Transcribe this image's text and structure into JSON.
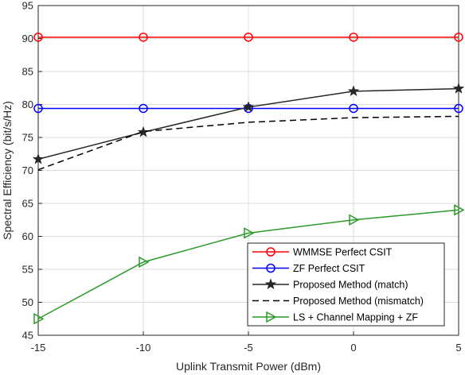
{
  "chart_data": {
    "type": "line",
    "title": "",
    "xlabel": "Uplink Transmit Power (dBm)",
    "ylabel": "Spectral Efficiency (bit/s/Hz)",
    "x": [
      -15,
      -10,
      -5,
      0,
      5
    ],
    "xlim": [
      -15,
      5
    ],
    "ylim": [
      45,
      95
    ],
    "xticks": [
      "-15",
      "-10",
      "-5",
      "0",
      "5"
    ],
    "yticks": [
      "45",
      "50",
      "55",
      "60",
      "65",
      "70",
      "75",
      "80",
      "85",
      "90",
      "95"
    ],
    "grid": true,
    "legend_position": "bottom-right",
    "series": [
      {
        "name": "WMMSE Perfect CSIT",
        "values": [
          90.2,
          90.2,
          90.2,
          90.2,
          90.2
        ],
        "color": "#ff0000",
        "marker": "circle",
        "dash": "solid"
      },
      {
        "name": "ZF Perfect CSIT",
        "values": [
          79.4,
          79.4,
          79.4,
          79.4,
          79.4
        ],
        "color": "#0000ff",
        "marker": "circle",
        "dash": "solid"
      },
      {
        "name": "Proposed Method (match)",
        "values": [
          71.7,
          75.8,
          79.6,
          82.0,
          82.4
        ],
        "color": "#262626",
        "marker": "star",
        "dash": "solid"
      },
      {
        "name": "Proposed Method (mismatch)",
        "values": [
          70.1,
          75.9,
          77.3,
          78.0,
          78.2
        ],
        "color": "#000000",
        "marker": "none",
        "dash": "dashed"
      },
      {
        "name": "LS + Channel Mapping + ZF",
        "values": [
          47.5,
          56.1,
          60.5,
          62.5,
          64.0
        ],
        "color": "#2a9a2a",
        "marker": "triangle-right",
        "dash": "solid"
      }
    ]
  }
}
